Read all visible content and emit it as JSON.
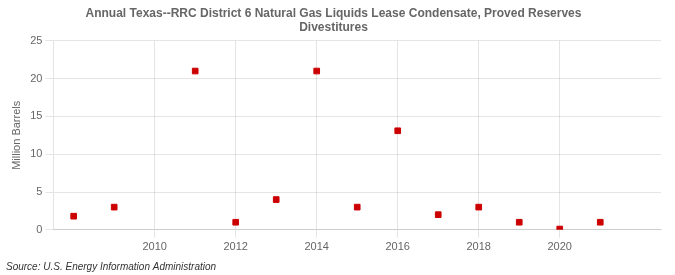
{
  "chart_data": {
    "type": "scatter",
    "title": "Annual Texas--RRC District 6 Natural Gas Liquids Lease Condensate, Proved Reserves\nDivestitures",
    "ylabel": "Million Barrels",
    "source": "Source: U.S. Energy Information Administration",
    "x": [
      2008,
      2009,
      2011,
      2012,
      2013,
      2014,
      2015,
      2016,
      2017,
      2018,
      2019,
      2020,
      2021
    ],
    "values": [
      1.8,
      3.0,
      21.0,
      1.0,
      4.0,
      21.0,
      3.0,
      13.1,
      2.0,
      3.0,
      1.0,
      0.1,
      1.0
    ],
    "color": "#cc0000",
    "marker": "square",
    "xlim": [
      2007.5,
      2022.5
    ],
    "ylim": [
      0,
      25
    ],
    "xticks": [
      2010,
      2012,
      2014,
      2016,
      2018,
      2020
    ],
    "yticks": [
      0,
      5,
      10,
      15,
      20,
      25
    ],
    "grid": true
  }
}
